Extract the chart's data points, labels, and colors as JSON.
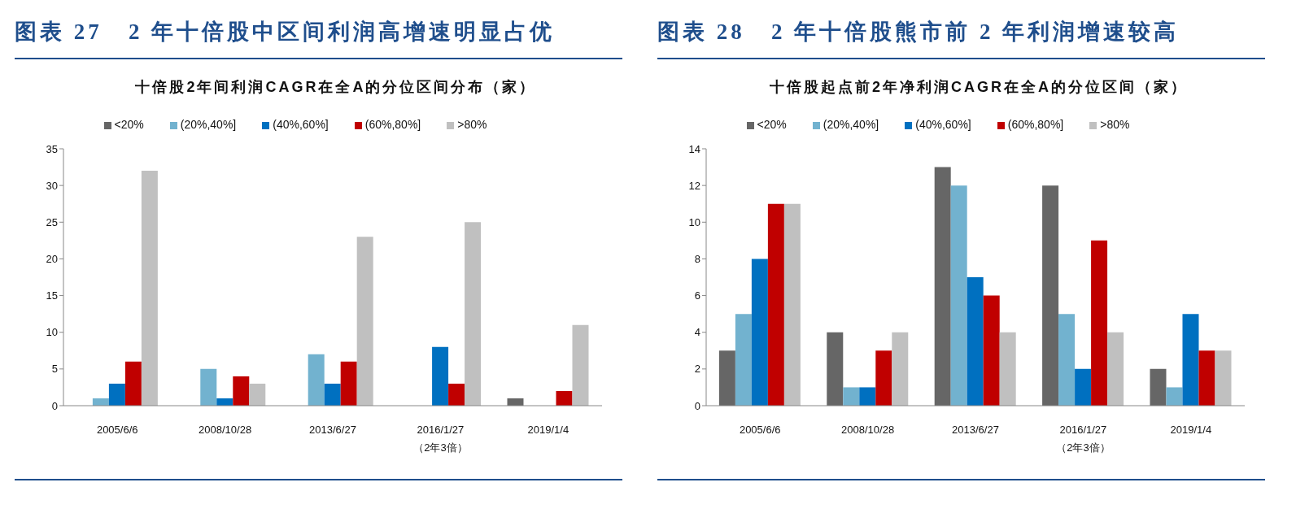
{
  "chart_data": [
    {
      "type": "bar",
      "title": "图表 27   2 年十倍股中区间利润高增速明显占优",
      "subtitle": "十倍股2年间利润CAGR在全A的分位区间分布（家）",
      "categories": [
        "2005/6/6",
        "2008/10/28",
        "2013/6/27",
        "2016/1/27\n（2年3倍）",
        "2019/1/4"
      ],
      "series": [
        {
          "name": "<20%",
          "color": "#666666",
          "values": [
            0,
            0,
            0,
            0,
            1
          ]
        },
        {
          "name": "(20%,40%]",
          "color": "#72b2cf",
          "values": [
            1,
            5,
            7,
            0,
            0
          ]
        },
        {
          "name": "(40%,60%]",
          "color": "#0070c0",
          "values": [
            3,
            1,
            3,
            8,
            0
          ]
        },
        {
          "name": "(60%,80%]",
          "color": "#c00000",
          "values": [
            6,
            4,
            6,
            3,
            2
          ]
        },
        {
          "name": ">80%",
          "color": "#c0c0c0",
          "values": [
            32,
            3,
            23,
            25,
            11
          ]
        }
      ],
      "ylim": [
        0,
        35
      ],
      "yticks": [
        0,
        5,
        10,
        15,
        20,
        25,
        30,
        35
      ],
      "legend": "top"
    },
    {
      "type": "bar",
      "title": "图表 28   2 年十倍股熊市前 2 年利润增速较高",
      "subtitle": "十倍股起点前2年净利润CAGR在全A的分位区间（家）",
      "categories": [
        "2005/6/6",
        "2008/10/28",
        "2013/6/27",
        "2016/1/27\n（2年3倍）",
        "2019/1/4"
      ],
      "series": [
        {
          "name": "<20%",
          "color": "#666666",
          "values": [
            3,
            4,
            13,
            12,
            2
          ]
        },
        {
          "name": "(20%,40%]",
          "color": "#72b2cf",
          "values": [
            5,
            1,
            12,
            5,
            1
          ]
        },
        {
          "name": "(40%,60%]",
          "color": "#0070c0",
          "values": [
            8,
            1,
            7,
            2,
            5
          ]
        },
        {
          "name": "(60%,80%]",
          "color": "#c00000",
          "values": [
            11,
            3,
            6,
            9,
            3
          ]
        },
        {
          "name": ">80%",
          "color": "#c0c0c0",
          "values": [
            11,
            4,
            4,
            4,
            3
          ]
        }
      ],
      "ylim": [
        0,
        14
      ],
      "yticks": [
        0,
        2,
        4,
        6,
        8,
        10,
        12,
        14
      ],
      "legend": "top"
    }
  ]
}
